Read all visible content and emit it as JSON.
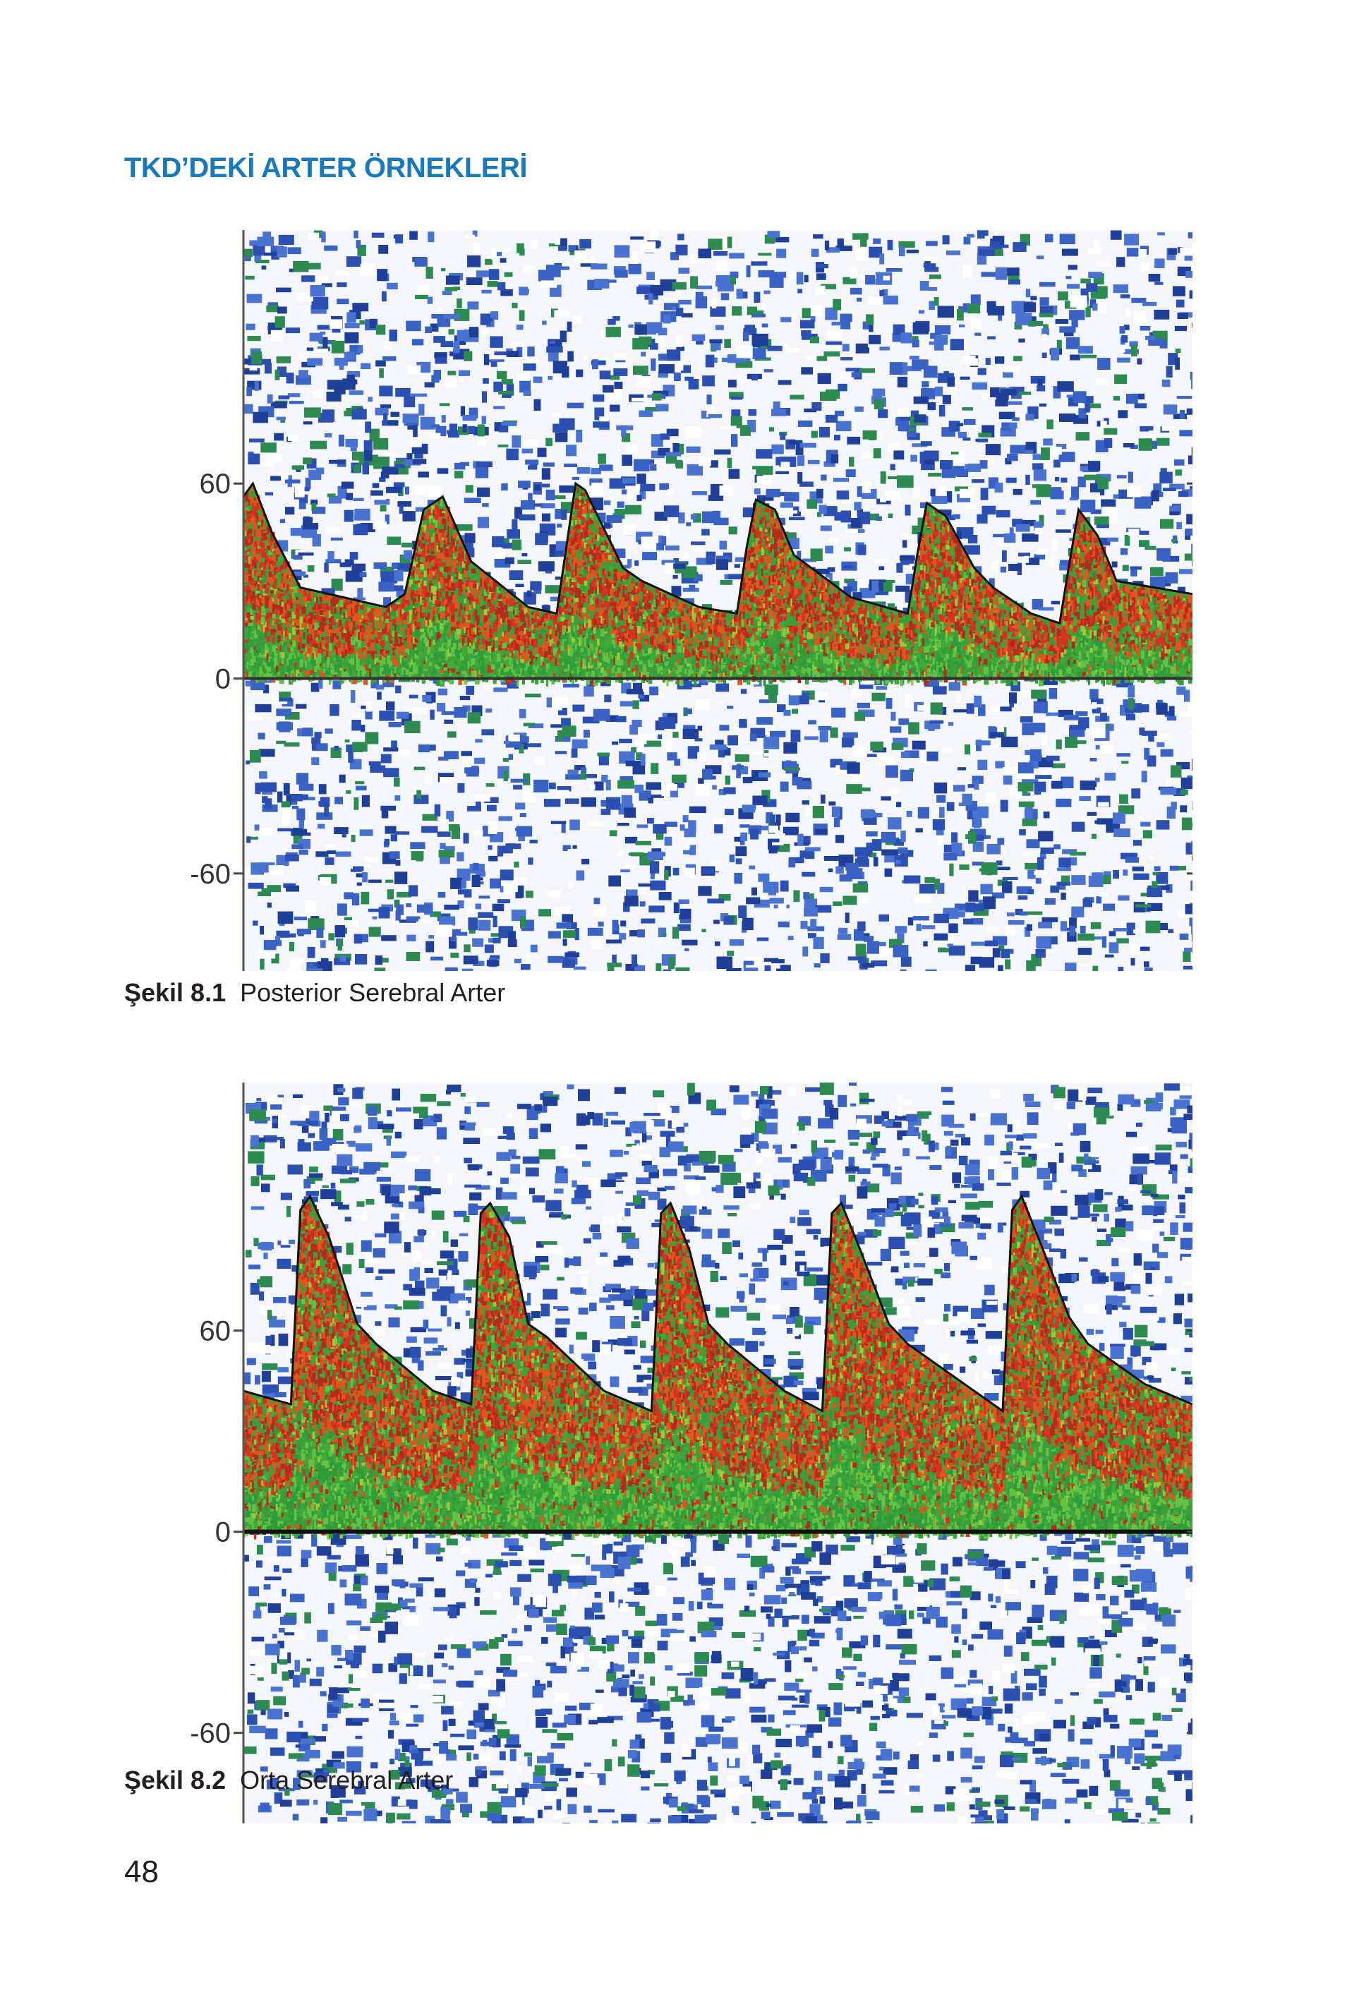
{
  "header": {
    "title": "TKD’DEKİ ARTER ÖRNEKLERİ"
  },
  "figures": [
    {
      "caption_number": "Şekil 8.1",
      "caption_text": "Posterior Serebral Arter",
      "y_ticks": [
        "60",
        "0",
        "-60"
      ],
      "chart_data": {
        "type": "area",
        "y_ticks": [
          60,
          0,
          -60
        ],
        "ylim": [
          -90,
          138
        ],
        "xlim": [
          0,
          100
        ],
        "x": [
          0,
          1,
          3,
          6,
          12,
          15,
          17,
          19,
          21,
          24,
          30,
          33,
          34,
          35,
          36,
          40,
          42,
          48,
          52,
          53,
          54,
          56,
          58,
          64,
          70,
          71,
          72,
          74,
          77,
          79,
          83,
          86,
          87,
          88,
          90,
          92,
          100
        ],
        "velocity_envelope": [
          56,
          60,
          45,
          28,
          24,
          22,
          26,
          52,
          56,
          36,
          22,
          20,
          40,
          60,
          58,
          34,
          30,
          22,
          20,
          40,
          55,
          52,
          38,
          25,
          20,
          38,
          54,
          50,
          34,
          28,
          20,
          17,
          35,
          52,
          44,
          30,
          26
        ],
        "background": {
          "noise_colors": [
            "#2c4fb2",
            "#3a61c4",
            "#1f3f98",
            "#4a72d0",
            "#2d8a50",
            "#ffffff"
          ]
        },
        "spectrum_colors": [
          "#d4331f",
          "#b52a1a",
          "#e0561f",
          "#3faa3a",
          "#63c244",
          "#2e9c3a",
          "#9ac93a"
        ],
        "envelope_color": "#111111",
        "baseline_color": "#303030"
      }
    },
    {
      "caption_number": "Şekil 8.2",
      "caption_text": "Orta Serebral Arter",
      "y_ticks": [
        "60",
        "0",
        "-60"
      ],
      "chart_data": {
        "type": "area",
        "y_ticks": [
          60,
          0,
          -60
        ],
        "ylim": [
          -87,
          134
        ],
        "xlim": [
          0,
          100
        ],
        "x": [
          0,
          5,
          6,
          7,
          9,
          12,
          14,
          20,
          24,
          25,
          26,
          28,
          30,
          32,
          38,
          43,
          44,
          45,
          47,
          49,
          51,
          57,
          61,
          62,
          63,
          65,
          68,
          70,
          76,
          80,
          81,
          82,
          84,
          87,
          89,
          95,
          100
        ],
        "velocity_envelope": [
          42,
          38,
          96,
          100,
          88,
          62,
          56,
          42,
          38,
          95,
          98,
          88,
          62,
          58,
          42,
          36,
          95,
          98,
          84,
          62,
          56,
          42,
          36,
          95,
          98,
          84,
          62,
          56,
          44,
          36,
          96,
          100,
          86,
          64,
          56,
          44,
          38
        ],
        "background": {
          "noise_colors": [
            "#2c4fb2",
            "#3a61c4",
            "#1f3f98",
            "#4a72d0",
            "#2d8a50",
            "#ffffff"
          ]
        },
        "spectrum_colors": [
          "#d4331f",
          "#b52a1a",
          "#e0561f",
          "#3faa3a",
          "#63c244",
          "#2e9c3a",
          "#9ac93a"
        ],
        "envelope_color": "#111111",
        "baseline_color": "#111111"
      }
    }
  ],
  "page_number": "48"
}
